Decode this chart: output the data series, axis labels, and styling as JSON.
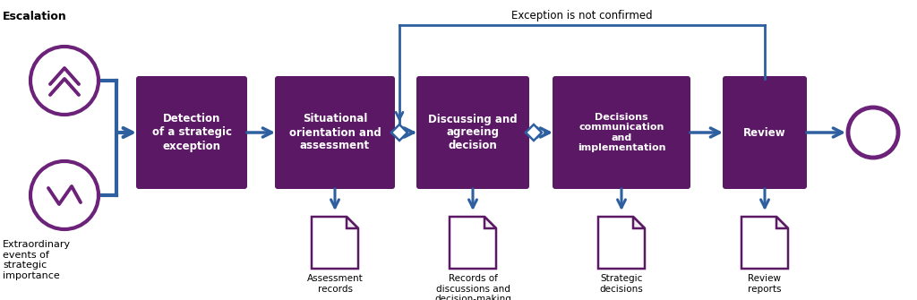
{
  "purple_dark": "#5B1865",
  "blue_arrow": "#2E5F9F",
  "purple_circle": "#6B2278",
  "bg_color": "#ffffff",
  "escalation_label": "Escalation",
  "extraordinary_label": "Extraordinary\nevents of\nstrategic\nimportance",
  "exception_label": "Exception is not confirmed",
  "boxes": [
    "Detection\nof a strategic\nexception",
    "Situational\norientation and\nassessment",
    "Discussing and\nagreeing\ndecision",
    "Decisions\ncommunication\nand\nimplementation",
    "Review"
  ],
  "doc_labels": [
    "Assessment\nrecords",
    "Records of\ndiscussions and\ndecision-making",
    "Strategic\ndecisions",
    "Review\nreports"
  ]
}
